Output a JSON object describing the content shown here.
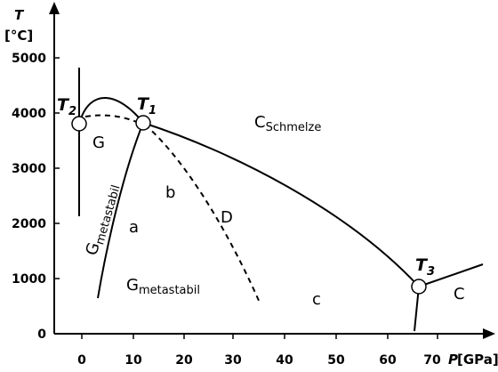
{
  "axes": {
    "y_title": "T",
    "y_unit": "[°C]",
    "x_title": "P",
    "x_unit": "[GPa]",
    "y_ticks": [
      "0",
      "1000",
      "2000",
      "3000",
      "4000",
      "5000"
    ],
    "x_ticks": [
      "0",
      "10",
      "20",
      "30",
      "40",
      "50",
      "60",
      "70"
    ]
  },
  "points": {
    "T2": {
      "main": "T",
      "sub": "2"
    },
    "T1": {
      "main": "T",
      "sub": "1"
    },
    "T3": {
      "main": "T",
      "sub": "3"
    }
  },
  "regions": {
    "graphite": "G",
    "melt_main": "C",
    "melt_sub": "Schmelze",
    "b": "b",
    "d": "D",
    "a": "a",
    "c": "c",
    "carbon": "C",
    "g_meta_rot_main": "G",
    "g_meta_rot_sub": "metastabil",
    "g_meta_main": "G",
    "g_meta_sub": "metastabil"
  },
  "colors": {
    "line": "#000000",
    "background": "#ffffff"
  }
}
